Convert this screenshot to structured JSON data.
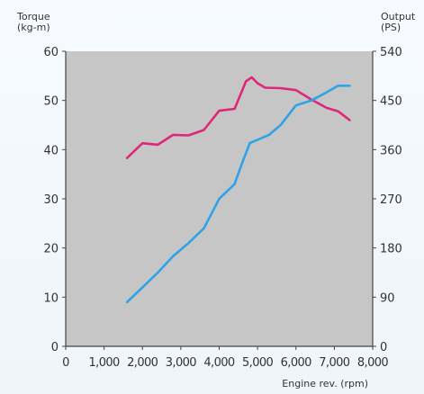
{
  "chart_data": {
    "type": "line",
    "left_axis_label": [
      "Torque",
      "(kg-m)"
    ],
    "right_axis_label": [
      "Output",
      "(PS)"
    ],
    "xlabel": "Engine rev. (rpm)",
    "x_ticks": [
      "0",
      "1,000",
      "2,000",
      "3,000",
      "4,000",
      "5,000",
      "6,000",
      "7,000",
      "8,000"
    ],
    "y_left_ticks": [
      "0",
      "10",
      "20",
      "30",
      "40",
      "50",
      "60"
    ],
    "y_right_ticks": [
      "0",
      "90",
      "180",
      "270",
      "360",
      "450",
      "540"
    ],
    "xlim": [
      0,
      8000
    ],
    "ylim_left": [
      0,
      60
    ],
    "ylim_right": [
      0,
      540
    ],
    "plot_background": "#c6c6c6",
    "grid": false,
    "series": [
      {
        "axis": "left",
        "color": "#e0267a",
        "x": [
          1600,
          2000,
          2400,
          2800,
          3200,
          3600,
          4000,
          4400,
          4700,
          4850,
          5000,
          5200,
          5600,
          6000,
          6400,
          6800,
          7100,
          7400
        ],
        "y": [
          38.3,
          41.3,
          41.0,
          43.0,
          42.9,
          44.0,
          47.9,
          48.3,
          53.9,
          54.7,
          53.5,
          52.6,
          52.5,
          52.1,
          50.2,
          48.5,
          47.8,
          46.0
        ]
      },
      {
        "axis": "right",
        "color": "#2ea3e8",
        "x": [
          1600,
          2000,
          2400,
          2800,
          3200,
          3600,
          4000,
          4400,
          4600,
          4800,
          5000,
          5300,
          5600,
          6000,
          6400,
          6800,
          7100,
          7400
        ],
        "y": [
          81,
          108,
          135,
          165,
          189,
          216,
          270,
          297,
          336,
          372,
          378,
          387,
          405,
          441,
          450,
          465,
          477,
          477
        ]
      }
    ]
  }
}
